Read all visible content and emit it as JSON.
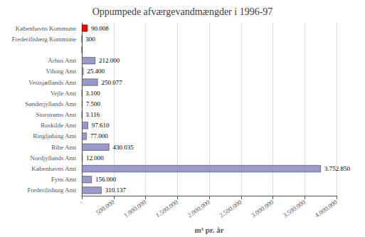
{
  "chart_data": {
    "type": "bar",
    "orientation": "horizontal",
    "title": "Oppumpede afværgevandmængder i 1996-97",
    "xlabel": "m³ pr. år",
    "categories": [
      "Københavns Kommune",
      "Frederilisberg Kommune",
      null,
      "Århus Amt",
      "Viborg Amt",
      "Vestsjællands Amt",
      "Vejle Amt",
      "Sønderjyllands Amt",
      "Storstrøms Amt",
      "Roskilde Amt",
      "Ringljøbing Amt",
      "Ribe Amt",
      "Nordjyllands Amt",
      "Københavns Amt",
      "Fyns Amt",
      "Frederilisborg Amt"
    ],
    "values": [
      90008,
      300,
      0,
      212000,
      25400,
      250077,
      3100,
      7500,
      3116,
      97610,
      77000,
      430035,
      12000,
      3752850,
      156000,
      310137
    ],
    "value_labels": [
      "90.008",
      "300",
      null,
      "212.000",
      "25.400",
      "250.077",
      "3.100",
      "7.500",
      "3.116",
      "97.610",
      "77.000",
      "430.035",
      "12.000",
      "3.752.850",
      "156.000",
      "310.137"
    ],
    "colors": [
      "#ff0000",
      "#808080",
      "#808080",
      "#9999cc",
      "#9999cc",
      "#9999cc",
      "#808080",
      "#808080",
      "#808080",
      "#9999cc",
      "#9999cc",
      "#9999cc",
      "#808080",
      "#9999cc",
      "#9999cc",
      "#9999cc"
    ],
    "data_labels": true,
    "xlim": [
      0,
      4000000
    ],
    "xticks": [
      {
        "value": 0,
        "label": "-"
      },
      {
        "value": 500000,
        "label": "500.000"
      },
      {
        "value": 1000000,
        "label": "1.000.000"
      },
      {
        "value": 1500000,
        "label": "1.500.000"
      },
      {
        "value": 2000000,
        "label": "2.000.000"
      },
      {
        "value": 2500000,
        "label": "2.500.000"
      },
      {
        "value": 3000000,
        "label": "3.000.000"
      },
      {
        "value": 3500000,
        "label": "3.500.000"
      },
      {
        "value": 4000000,
        "label": "4.000.000"
      }
    ],
    "grid": true
  }
}
